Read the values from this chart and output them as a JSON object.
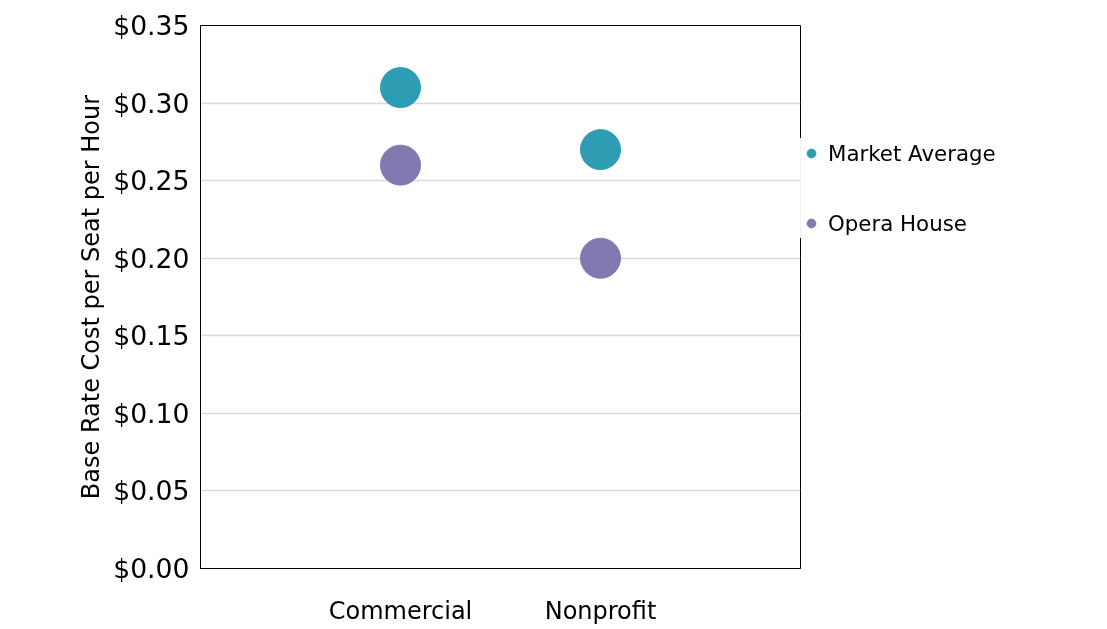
{
  "chart_data": {
    "type": "scatter",
    "ylabel": "Base Rate Cost per Seat per Hour",
    "categories": [
      "Commercial",
      "Nonprofit"
    ],
    "series": [
      {
        "name": "Market Average",
        "color": "#2e9db3",
        "values": [
          0.31,
          0.27
        ]
      },
      {
        "name": "Opera House",
        "color": "#8379b1",
        "values": [
          0.26,
          0.2
        ]
      }
    ],
    "ylim": [
      0,
      0.35
    ],
    "yticks": [
      {
        "value": 0,
        "label": "$0.00"
      },
      {
        "value": 0.05,
        "label": "$0.05"
      },
      {
        "value": 0.1,
        "label": "$0.10"
      },
      {
        "value": 0.15,
        "label": "$0.15"
      },
      {
        "value": 0.2,
        "label": "$0.20"
      },
      {
        "value": 0.25,
        "label": "$0.25"
      },
      {
        "value": 0.3,
        "label": "$0.30"
      },
      {
        "value": 0.35,
        "label": "$0.35"
      }
    ],
    "grid": "y",
    "legend": "right",
    "marker": "circle"
  }
}
